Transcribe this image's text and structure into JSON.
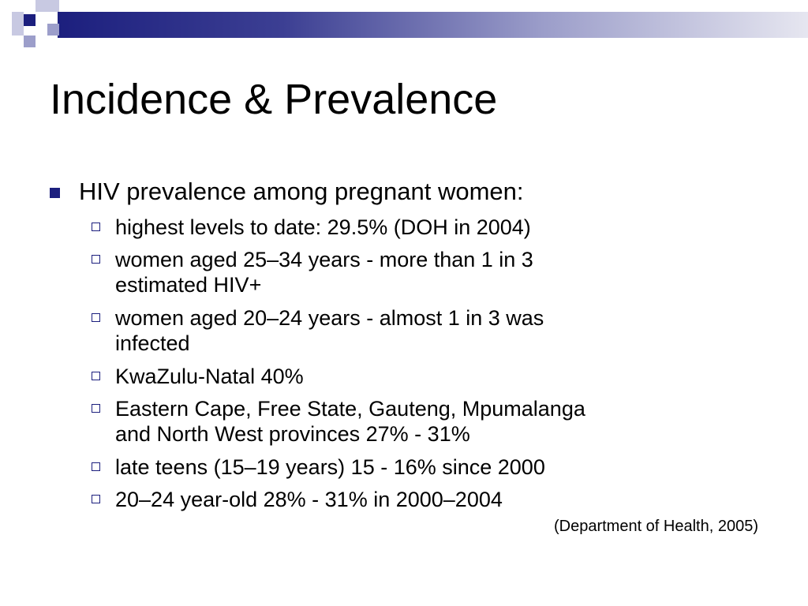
{
  "slide": {
    "title": "Incidence & Prevalence",
    "bullet": "HIV prevalence among pregnant women:",
    "sub_bullets": [
      " highest levels to date: 29.5% (DOH in 2004)",
      " women aged 25–34 years - more than 1 in 3\nestimated HIV+",
      " women aged 20–24 years - almost 1 in 3 was\ninfected",
      " KwaZulu-Natal 40%",
      " Eastern Cape, Free State, Gauteng, Mpumalanga\nand North West provinces 27% - 31%",
      " late teens (15–19 years) 15 - 16% since 2000",
      " 20–24 year-old 28% - 31% in 2000–2004"
    ],
    "citation": "(Department of Health, 2005)"
  },
  "theme": {
    "accent": "#1c1f7e",
    "accent_mid": "#3c3f93",
    "accent_light": "#9c9eca",
    "accent_pale": "#c8c9e2",
    "background": "#ffffff"
  }
}
